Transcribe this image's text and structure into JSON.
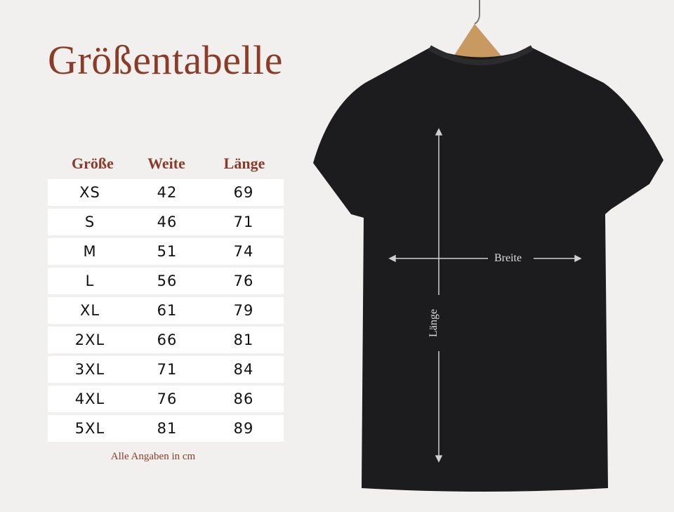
{
  "title": "Größentabelle",
  "table": {
    "headers": [
      "Größe",
      "Weite",
      "Länge"
    ],
    "rows": [
      [
        "XS",
        "42",
        "69"
      ],
      [
        "S",
        "46",
        "71"
      ],
      [
        "M",
        "51",
        "74"
      ],
      [
        "L",
        "56",
        "76"
      ],
      [
        "XL",
        "61",
        "79"
      ],
      [
        "2XL",
        "66",
        "81"
      ],
      [
        "3XL",
        "71",
        "84"
      ],
      [
        "4XL",
        "76",
        "86"
      ],
      [
        "5XL",
        "81",
        "89"
      ]
    ]
  },
  "note": "Alle Angaben in cm",
  "shirt": {
    "width_label": "Breite",
    "length_label": "Länge",
    "color": "#1c1c1e"
  },
  "colors": {
    "accent": "#8a3c28",
    "background": "#f1f0ef"
  }
}
